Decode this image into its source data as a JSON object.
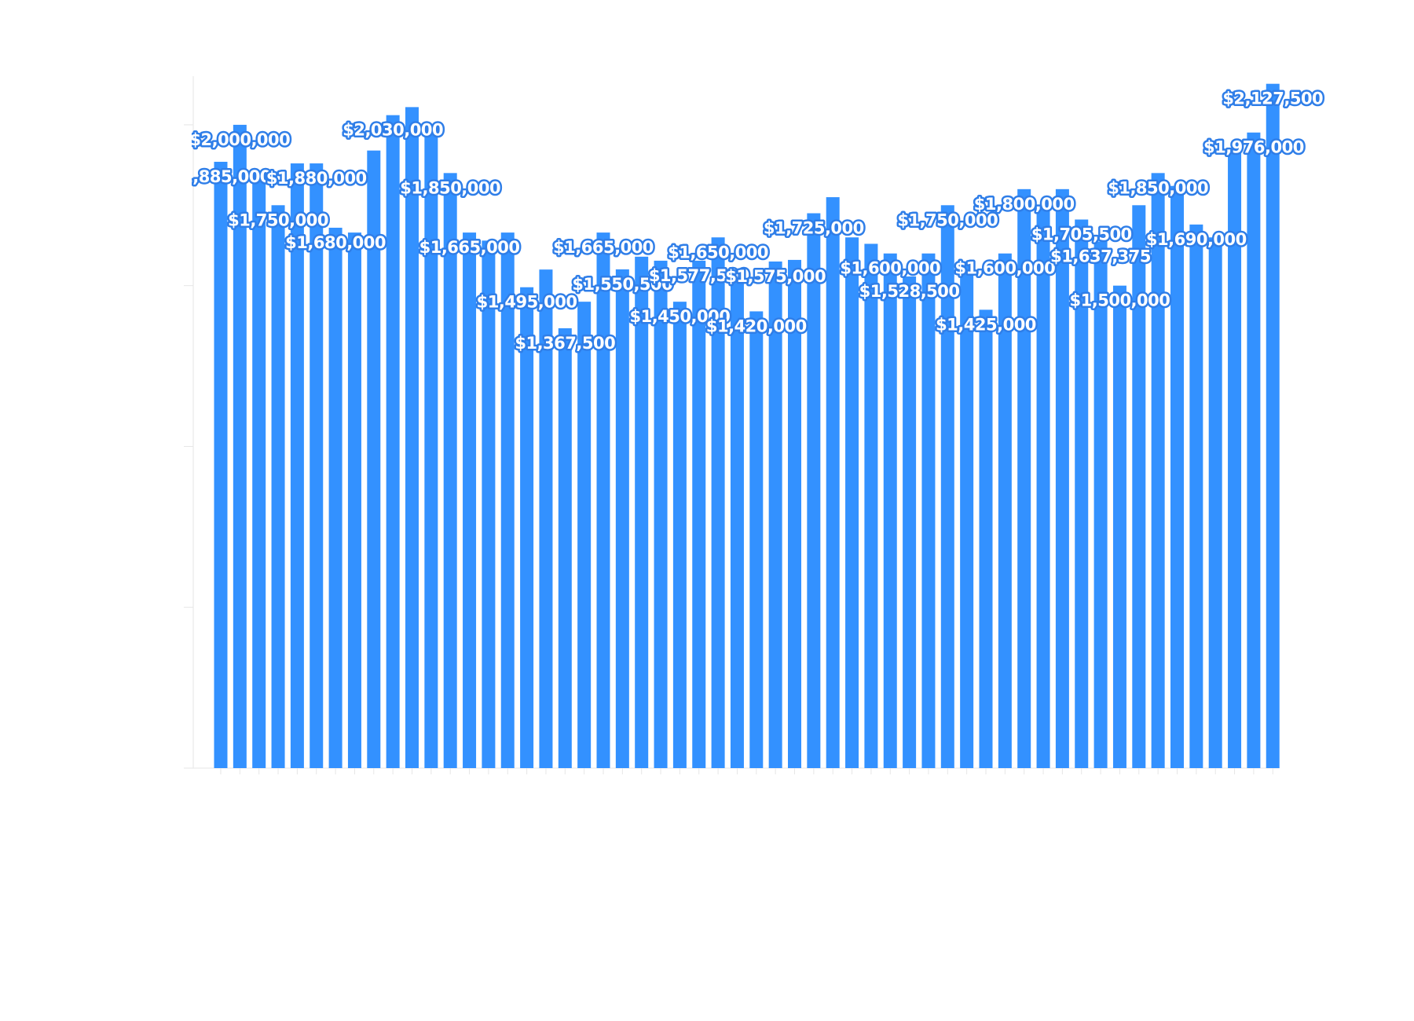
{
  "chart_data": {
    "type": "bar",
    "title": "",
    "xlabel": "",
    "ylabel": "",
    "ylim": [
      0,
      2200000
    ],
    "grid": false,
    "legend": "none",
    "bar_color": "#3391ff",
    "label_outline_color": "#2f7ee8",
    "label_fill_color": "#ffffff",
    "axis_color": "#e6e6e6",
    "values": [
      1885000,
      2000000,
      1840000,
      1750000,
      1880000,
      1880000,
      1680000,
      1665000,
      1920000,
      2030000,
      2055000,
      1980000,
      1850000,
      1665000,
      1640000,
      1665000,
      1495000,
      1550000,
      1367500,
      1450000,
      1665000,
      1550500,
      1590000,
      1577500,
      1450000,
      1577500,
      1650000,
      1550000,
      1420000,
      1575000,
      1580000,
      1725000,
      1775000,
      1650000,
      1630000,
      1600000,
      1528500,
      1600000,
      1750000,
      1575000,
      1425000,
      1600000,
      1800000,
      1740000,
      1800000,
      1705500,
      1637375,
      1500000,
      1750000,
      1850000,
      1810000,
      1690000,
      1650000,
      1915000,
      1976000,
      2127500
    ],
    "data_labels": [
      {
        "index": 0,
        "text": "$1,885,000"
      },
      {
        "index": 1,
        "text": "$2,000,000"
      },
      {
        "index": 3,
        "text": "$1,750,000"
      },
      {
        "index": 5,
        "text": "$1,880,000"
      },
      {
        "index": 6,
        "text": "$1,680,000"
      },
      {
        "index": 9,
        "text": "$2,030,000"
      },
      {
        "index": 12,
        "text": "$1,850,000"
      },
      {
        "index": 13,
        "text": "$1,665,000"
      },
      {
        "index": 16,
        "text": "$1,495,000"
      },
      {
        "index": 18,
        "text": "$1,367,500"
      },
      {
        "index": 20,
        "text": "$1,665,000"
      },
      {
        "index": 21,
        "text": "$1,550,500"
      },
      {
        "index": 24,
        "text": "$1,450,000"
      },
      {
        "index": 25,
        "text": "$1,577,500"
      },
      {
        "index": 26,
        "text": "$1,650,000"
      },
      {
        "index": 28,
        "text": "$1,420,000"
      },
      {
        "index": 29,
        "text": "$1,575,000"
      },
      {
        "index": 31,
        "text": "$1,725,000"
      },
      {
        "index": 35,
        "text": "$1,600,000"
      },
      {
        "index": 36,
        "text": "$1,528,500"
      },
      {
        "index": 38,
        "text": "$1,750,000"
      },
      {
        "index": 40,
        "text": "$1,425,000"
      },
      {
        "index": 41,
        "text": "$1,600,000"
      },
      {
        "index": 42,
        "text": "$1,800,000"
      },
      {
        "index": 45,
        "text": "$1,705,500"
      },
      {
        "index": 46,
        "text": "$1,637,375"
      },
      {
        "index": 47,
        "text": "$1,500,000"
      },
      {
        "index": 49,
        "text": "$1,850,000"
      },
      {
        "index": 51,
        "text": "$1,690,000"
      },
      {
        "index": 54,
        "text": "$1,976,000"
      },
      {
        "index": 55,
        "text": "$2,127,500"
      }
    ]
  }
}
